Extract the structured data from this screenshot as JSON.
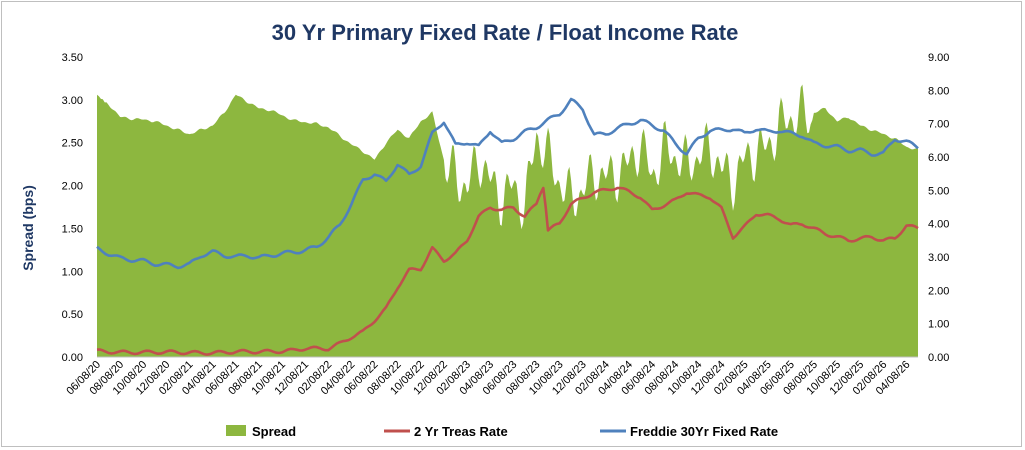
{
  "chart_data": {
    "type": "area+line",
    "title": "30 Yr Primary Fixed Rate / Float Income Rate",
    "ylabel_left": "Spread (bps)",
    "ylabel_right": "",
    "y_left_range": [
      0,
      3.5
    ],
    "y_right_range": [
      0,
      9
    ],
    "y_left_ticks": [
      "0.00",
      "0.50",
      "1.00",
      "1.50",
      "2.00",
      "2.50",
      "3.00",
      "3.50"
    ],
    "y_right_ticks": [
      "0.00",
      "1.00",
      "2.00",
      "3.00",
      "4.00",
      "5.00",
      "6.00",
      "7.00",
      "8.00",
      "9.00"
    ],
    "x_ticks": [
      "06/08/20",
      "08/08/20",
      "10/08/20",
      "12/08/20",
      "02/08/21",
      "04/08/21",
      "06/08/21",
      "08/08/21",
      "10/08/21",
      "12/08/21",
      "02/08/22",
      "04/08/22",
      "06/08/22",
      "08/08/22",
      "10/08/22",
      "12/08/22",
      "02/08/23",
      "04/08/23",
      "06/08/23",
      "08/08/23",
      "10/08/23",
      "12/08/23",
      "02/08/24",
      "04/08/24",
      "06/08/24",
      "08/08/24",
      "10/08/24",
      "12/08/24",
      "02/08/25",
      "04/08/25",
      "06/08/25",
      "08/08/25",
      "10/08/25",
      "12/08/25",
      "02/08/26",
      "04/08/26"
    ],
    "x_unit": "months since 06/08/20",
    "x_end": 71,
    "legend_position": "bottom",
    "series": [
      {
        "name": "Spread",
        "kind": "area",
        "axis": "left",
        "color": "#8db73f",
        "points": [
          [
            0,
            3.06
          ],
          [
            0.5,
            3.0
          ],
          [
            1,
            2.95
          ],
          [
            2,
            2.8
          ],
          [
            3,
            2.78
          ],
          [
            4,
            2.77
          ],
          [
            5,
            2.75
          ],
          [
            6,
            2.7
          ],
          [
            7,
            2.65
          ],
          [
            8,
            2.6
          ],
          [
            9,
            2.65
          ],
          [
            10,
            2.7
          ],
          [
            11,
            2.85
          ],
          [
            12,
            3.06
          ],
          [
            13,
            2.98
          ],
          [
            14,
            2.9
          ],
          [
            15,
            2.88
          ],
          [
            16,
            2.82
          ],
          [
            17,
            2.76
          ],
          [
            18,
            2.74
          ],
          [
            19,
            2.72
          ],
          [
            20,
            2.68
          ],
          [
            21,
            2.58
          ],
          [
            22,
            2.48
          ],
          [
            23,
            2.4
          ],
          [
            24,
            2.3
          ],
          [
            25,
            2.5
          ],
          [
            26,
            2.65
          ],
          [
            27,
            2.55
          ],
          [
            28,
            2.75
          ],
          [
            29,
            2.85
          ],
          [
            30,
            2.3
          ],
          [
            31,
            2.25
          ],
          [
            32,
            2.05
          ],
          [
            33,
            2.45
          ],
          [
            34,
            2.15
          ],
          [
            35,
            1.95
          ],
          [
            36,
            2.1
          ],
          [
            37,
            1.85
          ],
          [
            38,
            2.7
          ],
          [
            39,
            2.45
          ],
          [
            40,
            2.15
          ],
          [
            41,
            1.95
          ],
          [
            42,
            2.05
          ],
          [
            43,
            2.25
          ],
          [
            44,
            2.2
          ],
          [
            45,
            2.25
          ],
          [
            46,
            2.35
          ],
          [
            47,
            2.6
          ],
          [
            48,
            2.2
          ],
          [
            49,
            2.55
          ],
          [
            50,
            2.45
          ],
          [
            51,
            2.35
          ],
          [
            52,
            2.45
          ],
          [
            53,
            2.55
          ],
          [
            54,
            2.3
          ],
          [
            55,
            2.15
          ],
          [
            56,
            2.4
          ],
          [
            57,
            2.5
          ],
          [
            58,
            2.55
          ],
          [
            59,
            2.8
          ],
          [
            60,
            2.9
          ],
          [
            61,
            2.95
          ],
          [
            62,
            2.85
          ],
          [
            63,
            2.9
          ],
          [
            64,
            2.75
          ],
          [
            65,
            2.8
          ],
          [
            66,
            2.7
          ],
          [
            67,
            2.65
          ],
          [
            68,
            2.6
          ],
          [
            69,
            2.55
          ],
          [
            70,
            2.45
          ],
          [
            71,
            2.42
          ]
        ]
      },
      {
        "name": "2 Yr Treas Rate",
        "kind": "line",
        "axis": "right",
        "color": "#c0504d",
        "points": [
          [
            0,
            0.18
          ],
          [
            2,
            0.14
          ],
          [
            4,
            0.14
          ],
          [
            6,
            0.15
          ],
          [
            8,
            0.13
          ],
          [
            10,
            0.12
          ],
          [
            12,
            0.16
          ],
          [
            14,
            0.16
          ],
          [
            16,
            0.17
          ],
          [
            17,
            0.2
          ],
          [
            18,
            0.26
          ],
          [
            20,
            0.25
          ],
          [
            21,
            0.4
          ],
          [
            22,
            0.6
          ],
          [
            23,
            0.75
          ],
          [
            24,
            1.1
          ],
          [
            25,
            1.45
          ],
          [
            26,
            2.1
          ],
          [
            27,
            2.6
          ],
          [
            28,
            2.65
          ],
          [
            29,
            3.25
          ],
          [
            30,
            2.9
          ],
          [
            31,
            3.1
          ],
          [
            32,
            3.5
          ],
          [
            33,
            4.2
          ],
          [
            34,
            4.5
          ],
          [
            35,
            4.4
          ],
          [
            36,
            4.5
          ],
          [
            37,
            4.2
          ],
          [
            38,
            4.6
          ],
          [
            38.6,
            5.1
          ],
          [
            39,
            3.8
          ],
          [
            40,
            4.0
          ],
          [
            41,
            4.6
          ],
          [
            42,
            4.75
          ],
          [
            43,
            4.95
          ],
          [
            44,
            5.0
          ],
          [
            45,
            5.1
          ],
          [
            46,
            4.95
          ],
          [
            47,
            4.8
          ],
          [
            48,
            4.4
          ],
          [
            49,
            4.55
          ],
          [
            50,
            4.7
          ],
          [
            51,
            4.95
          ],
          [
            52,
            4.85
          ],
          [
            53,
            4.8
          ],
          [
            54,
            4.45
          ],
          [
            55,
            3.6
          ],
          [
            56,
            3.9
          ],
          [
            57,
            4.3
          ],
          [
            58,
            4.25
          ],
          [
            59,
            4.15
          ],
          [
            60,
            3.95
          ],
          [
            61,
            4.0
          ],
          [
            62,
            3.85
          ],
          [
            63,
            3.7
          ],
          [
            64,
            3.6
          ],
          [
            65,
            3.5
          ],
          [
            66,
            3.55
          ],
          [
            67,
            3.6
          ],
          [
            68,
            3.5
          ],
          [
            69,
            3.55
          ],
          [
            70,
            3.95
          ],
          [
            71,
            3.85
          ]
        ]
      },
      {
        "name": "Freddie 30Yr Fixed Rate",
        "kind": "line",
        "axis": "right",
        "color": "#4f81bd",
        "points": [
          [
            0,
            3.25
          ],
          [
            1,
            3.1
          ],
          [
            2,
            2.96
          ],
          [
            3,
            2.92
          ],
          [
            4,
            2.88
          ],
          [
            5,
            2.8
          ],
          [
            6,
            2.76
          ],
          [
            7,
            2.73
          ],
          [
            8,
            2.77
          ],
          [
            9,
            3.05
          ],
          [
            10,
            3.15
          ],
          [
            11,
            3.05
          ],
          [
            12,
            3.0
          ],
          [
            13,
            3.05
          ],
          [
            14,
            2.97
          ],
          [
            15,
            3.05
          ],
          [
            16,
            3.1
          ],
          [
            17,
            3.15
          ],
          [
            18,
            3.2
          ],
          [
            19,
            3.3
          ],
          [
            20,
            3.6
          ],
          [
            21,
            3.95
          ],
          [
            22,
            4.6
          ],
          [
            23,
            5.3
          ],
          [
            24,
            5.5
          ],
          [
            25,
            5.25
          ],
          [
            26,
            5.8
          ],
          [
            27,
            5.45
          ],
          [
            28,
            5.75
          ],
          [
            29,
            6.7
          ],
          [
            30,
            7.08
          ],
          [
            31,
            6.35
          ],
          [
            32,
            6.45
          ],
          [
            33,
            6.3
          ],
          [
            34,
            6.8
          ],
          [
            35,
            6.4
          ],
          [
            36,
            6.55
          ],
          [
            37,
            6.75
          ],
          [
            38,
            6.9
          ],
          [
            39,
            7.1
          ],
          [
            40,
            7.3
          ],
          [
            41,
            7.7
          ],
          [
            42,
            7.45
          ],
          [
            43,
            6.65
          ],
          [
            44,
            6.7
          ],
          [
            45,
            6.85
          ],
          [
            46,
            7.0
          ],
          [
            47,
            7.1
          ],
          [
            48,
            6.95
          ],
          [
            49,
            6.8
          ],
          [
            50,
            6.4
          ],
          [
            51,
            6.1
          ],
          [
            52,
            6.55
          ],
          [
            53,
            6.8
          ],
          [
            54,
            6.8
          ],
          [
            55,
            6.85
          ],
          [
            56,
            6.7
          ],
          [
            57,
            6.85
          ],
          [
            58,
            6.75
          ],
          [
            59,
            6.8
          ],
          [
            60,
            6.7
          ],
          [
            61,
            6.65
          ],
          [
            62,
            6.4
          ],
          [
            63,
            6.35
          ],
          [
            64,
            6.3
          ],
          [
            65,
            6.2
          ],
          [
            66,
            6.2
          ],
          [
            67,
            6.1
          ],
          [
            68,
            6.1
          ],
          [
            69,
            6.55
          ],
          [
            70,
            6.45
          ],
          [
            71,
            6.3
          ]
        ]
      }
    ]
  }
}
